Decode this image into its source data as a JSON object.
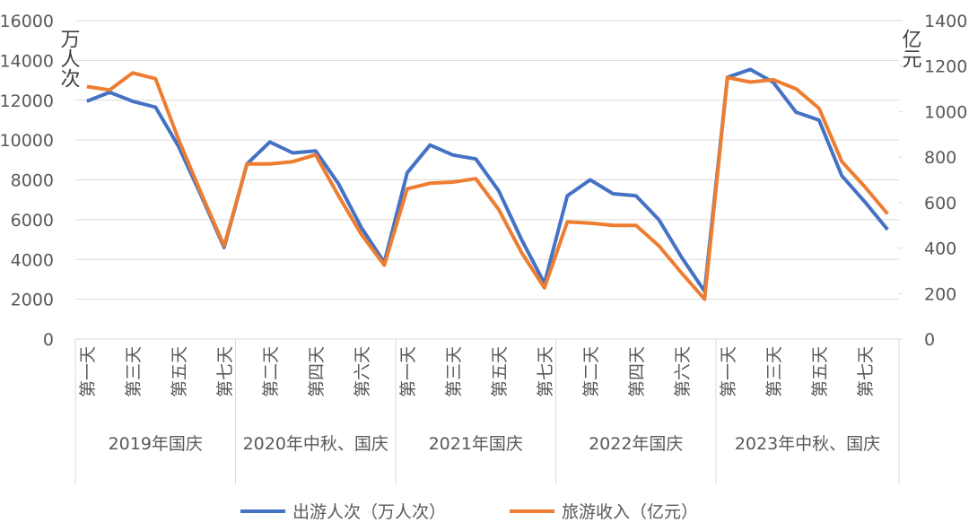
{
  "chart_data": {
    "type": "line",
    "groups": [
      {
        "label": "2019年国庆",
        "categories": [
          "第一天",
          null,
          "第三天",
          null,
          "第五天",
          null,
          "第七天"
        ]
      },
      {
        "label": "2020年中秋、国庆",
        "categories": [
          null,
          "第二天",
          null,
          "第四天",
          null,
          "第六天",
          null
        ]
      },
      {
        "label": "2021年国庆",
        "categories": [
          "第一天",
          null,
          "第三天",
          null,
          "第五天",
          null,
          "第七天"
        ]
      },
      {
        "label": "2022年国庆",
        "categories": [
          null,
          "第二天",
          null,
          "第四天",
          null,
          "第六天",
          null
        ]
      },
      {
        "label": "2023年中秋、国庆",
        "categories": [
          "第一天",
          null,
          "第三天",
          null,
          "第五天",
          null,
          "第七天",
          null
        ]
      }
    ],
    "ylabel": "万人次",
    "y2label": "亿元",
    "ylim": [
      0,
      16000
    ],
    "yticks": [
      0,
      2000,
      4000,
      6000,
      8000,
      10000,
      12000,
      14000,
      16000
    ],
    "y2lim": [
      0,
      1400
    ],
    "y2ticks": [
      0,
      200,
      400,
      600,
      800,
      1000,
      1200,
      1400
    ],
    "grid": true,
    "legend": "bottom",
    "series": [
      {
        "name": "出游人次（万人次）",
        "color": "#4472c4",
        "values": [
          11950,
          12400,
          11950,
          11650,
          9700,
          7200,
          4600,
          8800,
          9900,
          9350,
          9450,
          7800,
          5600,
          3850,
          8350,
          9750,
          9250,
          9050,
          7450,
          5000,
          2800,
          7200,
          8000,
          7300,
          7200,
          6000,
          4100,
          2400,
          13150,
          13550,
          12900,
          11400,
          11000,
          8200,
          6900,
          5500
        ]
      },
      {
        "name": "旅游收入（亿元）",
        "color": "#ed7d31",
        "axis": "y2",
        "values": [
          1110,
          1095,
          1170,
          1145,
          880,
          640,
          410,
          770,
          770,
          780,
          810,
          630,
          460,
          325,
          660,
          685,
          690,
          705,
          570,
          380,
          225,
          515,
          510,
          500,
          500,
          410,
          290,
          175,
          1150,
          1130,
          1140,
          1100,
          1015,
          780,
          670,
          550
        ]
      }
    ]
  }
}
